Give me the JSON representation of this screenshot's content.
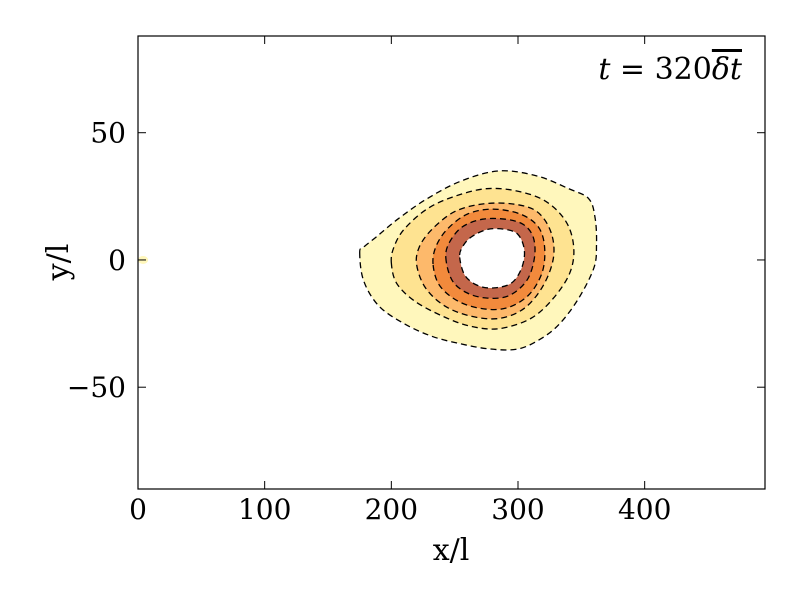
{
  "chart_data": {
    "type": "contour",
    "title": "",
    "annotation": {
      "t": "t",
      "equals": " = 320",
      "delta": "δt"
    },
    "xlabel": "x/l",
    "ylabel": "y/l",
    "xlim": [
      0,
      495
    ],
    "ylim": [
      -90,
      88
    ],
    "xticks": [
      0,
      100,
      200,
      300,
      400
    ],
    "yticks": [
      -50,
      0,
      50
    ],
    "xtick_labels": [
      "0",
      "100",
      "200",
      "300",
      "400"
    ],
    "ytick_labels": [
      "−50",
      "0",
      "50"
    ],
    "grid": false,
    "levels": [
      {
        "level": 1,
        "fill": "#fff7bc",
        "points": [
          [
            175,
            3
          ],
          [
            178,
            -8
          ],
          [
            190,
            -18
          ],
          [
            210,
            -25
          ],
          [
            232,
            -30
          ],
          [
            255,
            -33
          ],
          [
            278,
            -35
          ],
          [
            300,
            -35
          ],
          [
            318,
            -31
          ],
          [
            333,
            -25
          ],
          [
            348,
            -15
          ],
          [
            360,
            -3
          ],
          [
            362,
            6
          ],
          [
            361,
            16
          ],
          [
            356,
            24
          ],
          [
            340,
            28
          ],
          [
            315,
            33
          ],
          [
            285,
            35
          ],
          [
            255,
            31
          ],
          [
            228,
            24
          ],
          [
            205,
            16
          ],
          [
            188,
            9
          ],
          [
            178,
            5
          ]
        ]
      },
      {
        "level": 2,
        "fill": "#fee391",
        "points": [
          [
            200,
            -1
          ],
          [
            204,
            -9
          ],
          [
            218,
            -16
          ],
          [
            240,
            -22
          ],
          [
            262,
            -26
          ],
          [
            285,
            -27
          ],
          [
            310,
            -23
          ],
          [
            328,
            -15
          ],
          [
            341,
            -5
          ],
          [
            344,
            5
          ],
          [
            338,
            15
          ],
          [
            322,
            23
          ],
          [
            300,
            27
          ],
          [
            275,
            28
          ],
          [
            250,
            25
          ],
          [
            228,
            20
          ],
          [
            210,
            12
          ],
          [
            202,
            5
          ]
        ]
      },
      {
        "level": 3,
        "fill": "#fdb96b",
        "points": [
          [
            220,
            -2
          ],
          [
            227,
            -11
          ],
          [
            242,
            -18
          ],
          [
            262,
            -22
          ],
          [
            285,
            -23
          ],
          [
            305,
            -19
          ],
          [
            320,
            -10
          ],
          [
            328,
            1
          ],
          [
            326,
            11
          ],
          [
            315,
            19
          ],
          [
            296,
            22
          ],
          [
            272,
            22
          ],
          [
            250,
            19
          ],
          [
            232,
            12
          ],
          [
            222,
            5
          ]
        ]
      },
      {
        "level": 4,
        "fill": "#f28a3c",
        "points": [
          [
            233,
            -2
          ],
          [
            238,
            -10
          ],
          [
            252,
            -16
          ],
          [
            270,
            -19
          ],
          [
            290,
            -19
          ],
          [
            308,
            -14
          ],
          [
            319,
            -5
          ],
          [
            321,
            5
          ],
          [
            316,
            13
          ],
          [
            302,
            18
          ],
          [
            280,
            20
          ],
          [
            260,
            18
          ],
          [
            244,
            12
          ],
          [
            235,
            5
          ]
        ]
      },
      {
        "level": 5,
        "fill": "#c4674b",
        "points": [
          [
            243,
            1
          ],
          [
            248,
            -8
          ],
          [
            260,
            -13
          ],
          [
            276,
            -15
          ],
          [
            293,
            -14
          ],
          [
            307,
            -8
          ],
          [
            313,
            1
          ],
          [
            312,
            9
          ],
          [
            304,
            14
          ],
          [
            290,
            16
          ],
          [
            272,
            16
          ],
          [
            256,
            13
          ],
          [
            246,
            7
          ]
        ]
      },
      {
        "level": 6,
        "fill": "#ffffff",
        "points": [
          [
            254,
            1
          ],
          [
            258,
            -6
          ],
          [
            268,
            -10
          ],
          [
            281,
            -11
          ],
          [
            295,
            -9
          ],
          [
            303,
            -3
          ],
          [
            305,
            4
          ],
          [
            300,
            10
          ],
          [
            290,
            12
          ],
          [
            276,
            12
          ],
          [
            263,
            9
          ],
          [
            256,
            5
          ]
        ]
      }
    ],
    "dashed_levels": [
      1,
      2,
      3,
      4,
      5,
      6
    ],
    "edge_feature": {
      "x": [
        0,
        8
      ],
      "y": 0,
      "fill": "#fff7bc"
    }
  }
}
